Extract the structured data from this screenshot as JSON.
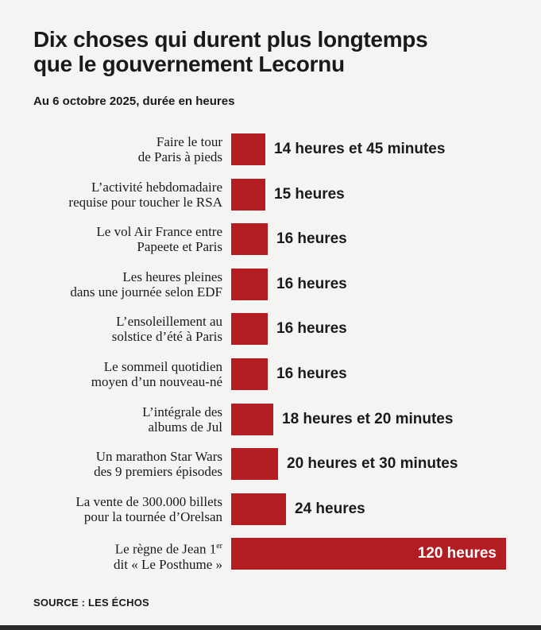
{
  "header": {
    "title_line1": "Dix choses qui durent plus longtemps",
    "title_line2": "que le gouvernement Lecornu",
    "subtitle": "Au 6 octobre 2025, durée en heures"
  },
  "chart_data": {
    "type": "bar",
    "orientation": "horizontal",
    "title": "Dix choses qui durent plus longtemps que le gouvernement Lecornu",
    "subtitle": "Au 6 octobre 2025, durée en heures",
    "unit": "heures",
    "bar_color": "#b31d21",
    "categories": [
      [
        "Faire le tour",
        "de Paris à pieds"
      ],
      [
        "L’activité hebdomadaire",
        "requise pour toucher le RSA"
      ],
      [
        "Le vol Air France entre",
        "Papeete et Paris"
      ],
      [
        "Les heures pleines",
        "dans une journée selon EDF"
      ],
      [
        "L’ensoleillement au",
        "solstice d’été à Paris"
      ],
      [
        "Le sommeil quotidien",
        "moyen d’un nouveau-né"
      ],
      [
        "L’intégrale des",
        "albums de Jul"
      ],
      [
        "Un marathon Star Wars",
        "des 9 premiers épisodes"
      ],
      [
        "La vente de 300.000 billets",
        "pour la tournée d’Orelsan"
      ],
      [
        "Le règne de Jean 1",
        "er",
        "dit « Le Posthume »"
      ]
    ],
    "values": [
      14.75,
      15,
      16,
      16,
      16,
      16,
      18.33,
      20.5,
      24,
      120
    ],
    "value_labels": [
      "14 heures et 45 minutes",
      "15 heures",
      "16 heures",
      "16 heures",
      "16 heures",
      "16 heures",
      "18 heures et 20 minutes",
      "20 heures et 30 minutes",
      "24 heures",
      "120 heures"
    ],
    "xlim": [
      0,
      120
    ]
  },
  "footer": {
    "source": "SOURCE : LES ÉCHOS"
  }
}
